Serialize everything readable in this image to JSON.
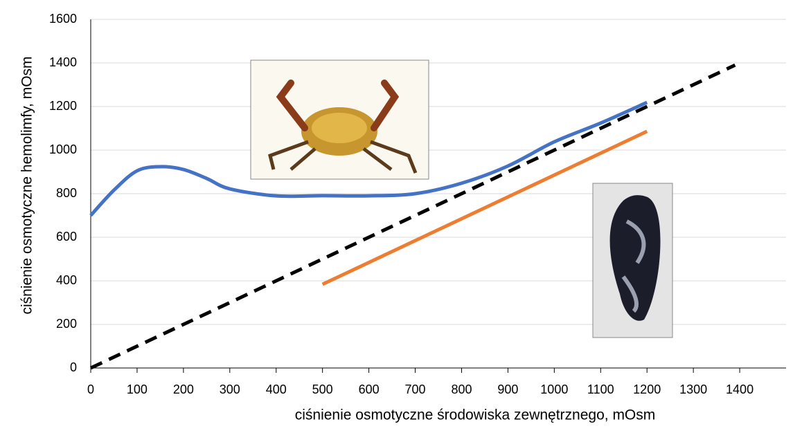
{
  "chart_data": {
    "type": "line",
    "x_label": "ciśnienie osmotyczne środowiska zewnętrznego, mOsm",
    "y_label": "ciśnienie osmotyczne hemolimfy, mOsm",
    "xlim": [
      0,
      1500
    ],
    "ylim": [
      0,
      1600
    ],
    "xticks": [
      0,
      100,
      200,
      300,
      400,
      500,
      600,
      700,
      800,
      900,
      1000,
      1100,
      1200,
      1300,
      1400
    ],
    "yticks": [
      0,
      200,
      400,
      600,
      800,
      1000,
      1200,
      1400,
      1600
    ],
    "grid": true,
    "series": [
      {
        "color": "#4472c4",
        "dashed": false,
        "x": [
          0,
          50,
          100,
          150,
          200,
          250,
          300,
          400,
          500,
          600,
          700,
          800,
          900,
          1000,
          1100,
          1200
        ],
        "values": [
          700,
          816,
          905,
          924,
          911,
          870,
          822,
          790,
          791,
          790,
          800,
          848,
          927,
          1038,
          1124,
          1219
        ]
      },
      {
        "color": "#ed7d31",
        "dashed": false,
        "x": [
          500,
          1200
        ],
        "values": [
          384,
          1086
        ]
      },
      {
        "color": "#000000",
        "dashed": true,
        "x": [
          0,
          1390
        ],
        "values": [
          0,
          1390
        ]
      }
    ]
  }
}
